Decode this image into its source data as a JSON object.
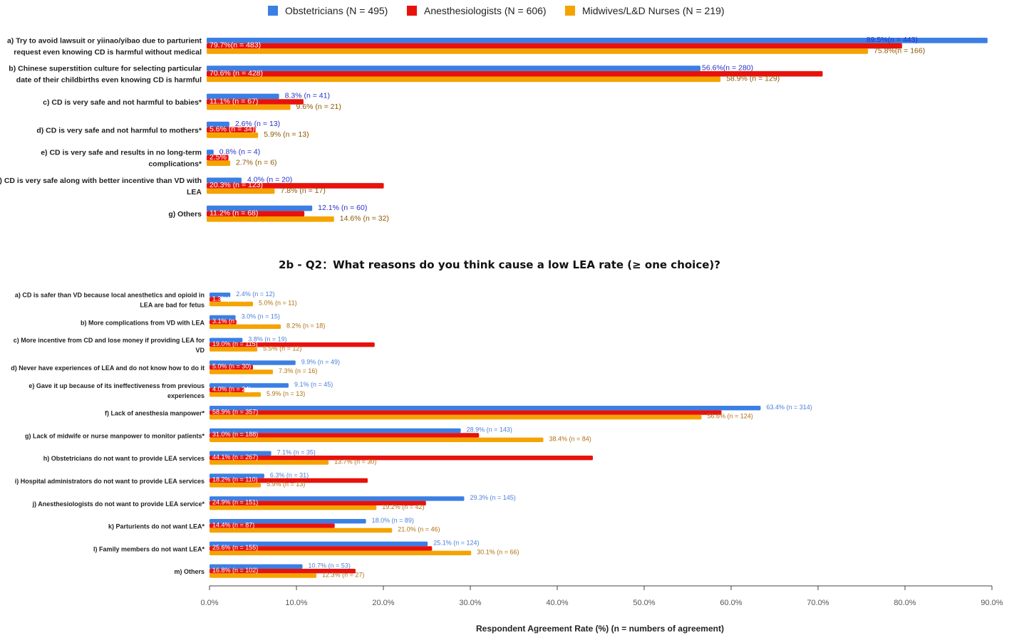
{
  "chart_data": [
    {
      "type": "bar",
      "orientation": "horizontal",
      "title": "",
      "legend_position": "top",
      "colors": [
        "#3b7fe4",
        "#e8120c",
        "#f5a300"
      ],
      "series_names": [
        "Obstetricians (N = 495)",
        "Anesthesiologists (N = 606)",
        "Midwives/L&D Nurses (N = 219)"
      ],
      "categories": [
        [
          "a) Try to avoid lawsuit or yiinao/yibao due to parturient",
          "request even knowing CD is harmful without medical"
        ],
        [
          "b) Chinese superstition culture for selecting particular",
          "date of their childbirths even knowing CD is harmful"
        ],
        [
          "c) CD is very safe and not harmful to babies*"
        ],
        [
          "d) CD is very safe and not harmful to mothers*"
        ],
        [
          "e) CD is very safe and results in no long-term",
          "complications*"
        ],
        [
          "f) CD is very safe along with better incentive than VD with",
          "LEA"
        ],
        [
          "g) Others"
        ]
      ],
      "series": [
        {
          "name": "Obstetricians (N = 495)",
          "values": [
            89.5,
            56.6,
            8.3,
            2.6,
            0.8,
            4.0,
            12.1
          ],
          "labels": [
            "89.5%(n = 443)",
            "56.6%(n = 280)",
            "8.3% (n = 41)",
            "2.6% (n = 13)",
            "0.8% (n = 4)",
            "4.0% (n = 20)",
            "12.1% (n = 60)"
          ]
        },
        {
          "name": "Anesthesiologists (N = 606)",
          "values": [
            79.7,
            70.6,
            11.1,
            5.6,
            2.5,
            20.3,
            11.2
          ],
          "labels": [
            "79.7%(n = 483)",
            "70.6% (n = 428)",
            "11.1% (n = 67)",
            "5.6% (n = 34)",
            "2.5% (n = 15)",
            "20.3% (n = 123)",
            "11.2% (n = 68)"
          ]
        },
        {
          "name": "Midwives/L&D Nurses (N = 219)",
          "values": [
            75.8,
            58.9,
            9.6,
            5.9,
            2.7,
            7.8,
            14.6
          ],
          "labels": [
            "75.8%(n = 166)",
            "58.9% (n = 129)",
            "9.6% (n = 21)",
            "5.9% (n = 13)",
            "2.7% (n = 6)",
            "7.8% (n = 17)",
            "14.6% (n = 32)"
          ]
        }
      ]
    },
    {
      "type": "bar",
      "orientation": "horizontal",
      "title": "2b - Q2：What reasons do you think cause a low LEA rate (≥ one choice)?",
      "xlabel": "Respondent Agreement Rate (%) (n = numbers of agreement)",
      "xlim": [
        0,
        90
      ],
      "x_ticks": [
        "0.0%",
        "10.0%",
        "20.0%",
        "30.0%",
        "40.0%",
        "50.0%",
        "60.0%",
        "70.0%",
        "80.0%",
        "90.0%"
      ],
      "categories": [
        [
          "a) CD is safer than VD because local anesthetics and opioid in",
          "LEA are bad for fetus"
        ],
        [
          "b) More complications from VD with LEA"
        ],
        [
          "c) More incentive from CD and lose money if providing LEA for",
          "VD"
        ],
        [
          "d) Never have experiences of LEA and do not know how to do it"
        ],
        [
          "e) Gave it up because of its ineffectiveness from previous",
          "experiences"
        ],
        [
          "f) Lack of anesthesia manpower*"
        ],
        [
          "g) Lack of midwife or nurse manpower to monitor patients*"
        ],
        [
          "h) Obstetricians do not want to provide LEA services"
        ],
        [
          "i) Hospital administrators do not want to provide LEA services"
        ],
        [
          "j) Anesthesiologists do not want to provide LEA service*"
        ],
        [
          "k) Parturients do not want LEA*"
        ],
        [
          "l) Family members do not want LEA*"
        ],
        [
          "m) Others"
        ]
      ],
      "series": [
        {
          "name": "Obstetricians (N = 495)",
          "values": [
            2.4,
            3.0,
            3.8,
            9.9,
            9.1,
            63.4,
            28.9,
            7.1,
            6.3,
            29.3,
            18.0,
            25.1,
            10.7
          ],
          "labels": [
            "2.4% (n = 12)",
            "3.0% (n = 15)",
            "3.8% (n = 19)",
            "9.9% (n = 49)",
            "9.1% (n = 45)",
            "63.4% (n = 314)",
            "28.9% (n = 143)",
            "7.1% (n = 35)",
            "6.3% (n = 31)",
            "29.3% (n = 145)",
            "18.0% (n = 89)",
            "25.1% (n = 124)",
            "10.7% (n = 53)"
          ]
        },
        {
          "name": "Anesthesiologists (N = 606)",
          "values": [
            1.3,
            3.1,
            19.0,
            5.0,
            4.0,
            58.9,
            31.0,
            44.1,
            18.2,
            24.9,
            14.4,
            25.6,
            16.8
          ],
          "labels": [
            "1.3%(n = 8)",
            "3.1% (n = 19)",
            "19.0% (n = 115)",
            "5.0% (n = 30)",
            "4.0% (n = 24)",
            "58.9% (n = 357)",
            "31.0% (n = 188)",
            "44.1% (n = 267)",
            "18.2% (n = 110)",
            "24.9% (n = 151)",
            "14.4% (n = 87)",
            "25.6% (n = 155)",
            "16.8% (n = 102)"
          ]
        },
        {
          "name": "Midwives/L&D Nurses (N = 219)",
          "values": [
            5.0,
            8.2,
            5.5,
            7.3,
            5.9,
            56.6,
            38.4,
            13.7,
            5.9,
            19.2,
            21.0,
            30.1,
            12.3
          ],
          "labels": [
            "5.0% (n = 11)",
            "8.2% (n = 18)",
            "5.5% (n = 12)",
            "7.3% (n = 16)",
            "5.9% (n = 13)",
            "56.6% (n = 124)",
            "38.4% (n = 84)",
            "13.7% (n = 30)",
            "5.9% (n = 13)",
            "19.2% (n = 42)",
            "21.0% (n = 46)",
            "30.1% (n = 66)",
            "12.3% (n = 27)"
          ]
        }
      ]
    }
  ]
}
